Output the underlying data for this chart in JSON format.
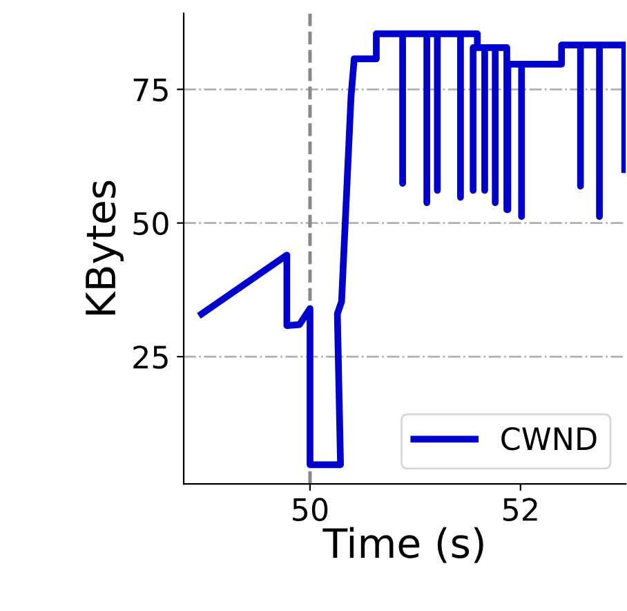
{
  "chart_data": {
    "type": "line",
    "xlabel": "Time (s)",
    "ylabel": "KBytes",
    "xlim": [
      48.8,
      53.0
    ],
    "ylim": [
      1.2,
      89.2
    ],
    "xticks": [
      50,
      52
    ],
    "yticks": [
      25,
      50,
      75
    ],
    "grid": "y",
    "legend": "lower right",
    "line_style": "solid",
    "marker": "none",
    "ref_lines": [
      {
        "axis": "x",
        "value": 50,
        "color": "#888888",
        "line_style": "dashed"
      }
    ],
    "series": [
      {
        "name": "CWND",
        "color": "#0000cc",
        "x": [
          48.97,
          49.78,
          49.78,
          49.9,
          50.0,
          50.0,
          50.29,
          50.26,
          50.3,
          50.39,
          50.42,
          50.63,
          50.63,
          50.88,
          50.88,
          50.88,
          51.11,
          51.11,
          51.11,
          51.21,
          51.21,
          51.21,
          51.43,
          51.43,
          51.43,
          51.59,
          51.59,
          51.55,
          51.55,
          51.55,
          51.66,
          51.66,
          51.66,
          51.76,
          51.76,
          51.76,
          51.87,
          51.87,
          51.88,
          51.88,
          52.01,
          52.01,
          52.01,
          52.39,
          52.39,
          52.57,
          52.57,
          52.57,
          52.75,
          52.75,
          52.75,
          52.99,
          52.99
        ],
        "values": [
          33.0,
          44.0,
          30.8,
          31.0,
          34.0,
          4.8,
          4.8,
          33.0,
          35.3,
          73.7,
          80.7,
          80.7,
          85.4,
          85.4,
          57.4,
          85.4,
          85.4,
          53.8,
          85.4,
          85.4,
          56.1,
          85.4,
          85.4,
          54.8,
          85.4,
          85.4,
          82.8,
          82.8,
          56.1,
          82.8,
          82.8,
          56.1,
          82.8,
          82.8,
          53.8,
          82.8,
          82.8,
          52.5,
          52.5,
          79.7,
          79.7,
          51.2,
          79.7,
          79.7,
          83.3,
          83.3,
          56.9,
          83.3,
          83.3,
          51.2,
          83.3,
          83.3,
          60.0
        ]
      }
    ]
  }
}
